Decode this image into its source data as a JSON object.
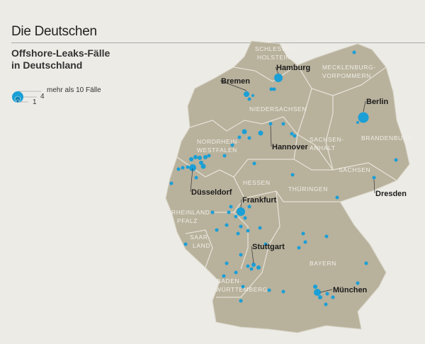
{
  "title": "Die Deutschen",
  "subtitle_line1": "Offshore-Leaks-Fälle",
  "subtitle_line2": "in Deutschland",
  "legend": {
    "label": "mehr als 10 Fälle",
    "mid": "4",
    "small": "1"
  },
  "colors": {
    "dot": "#1a9fd6",
    "land": "#b8b19c",
    "background": "#ecebe6",
    "border": "#e4e1d6"
  },
  "regions": [
    "SCHLESWIG-",
    "HOLSTEIN",
    "MECKLENBURG-",
    "VORPOMMERN",
    "NIEDERSACHSEN",
    "NORDRHEIN-",
    "WESTFALEN",
    "SACHSEN-",
    "ANHALT",
    "BRANDENBURG",
    "SACHSEN",
    "HESSEN",
    "THÜRINGEN",
    "RHEINLAND-",
    "PFALZ",
    "SAAR-",
    "LAND",
    "BAYERN",
    "BADEN-",
    "WÜRTTEMBERG"
  ],
  "cities": [
    "Hamburg",
    "Bremen",
    "Berlin",
    "Hannover",
    "Düsseldorf",
    "Frankfurt",
    "Dresden",
    "Stuttgart",
    "München"
  ]
}
